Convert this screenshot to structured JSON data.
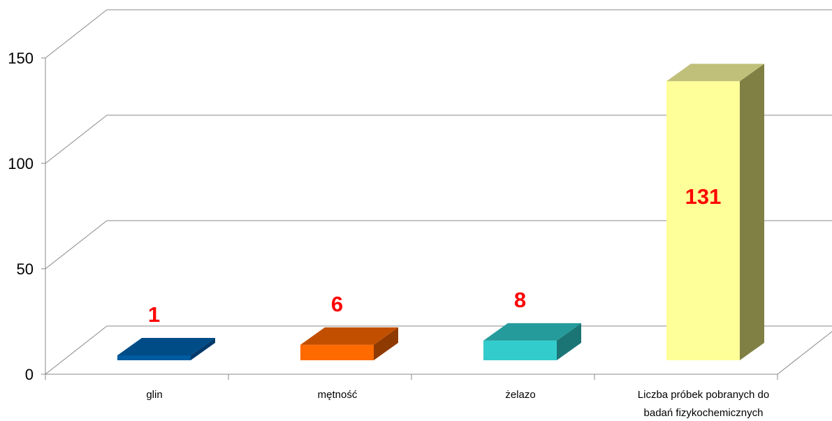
{
  "chart_data": {
    "type": "bar",
    "style": "3d-column",
    "categories": [
      [
        "glin"
      ],
      [
        "mętność"
      ],
      [
        "żelazo"
      ],
      [
        "Liczba próbek pobranych do",
        "badań fizykochemicznych"
      ]
    ],
    "values": [
      1,
      6,
      8,
      131
    ],
    "data_labels": [
      "1",
      "6",
      "8",
      "131"
    ],
    "y_ticks": [
      "0",
      "50",
      "100",
      "150"
    ],
    "y_tick_values": [
      0,
      50,
      100,
      150
    ],
    "ylim": [
      0,
      150
    ],
    "grid": true,
    "legend": "none",
    "colors": {
      "front": [
        "#005b9f",
        "#ff6a00",
        "#33cccc",
        "#ffff99"
      ],
      "top": [
        "#004c87",
        "#c24f00",
        "#259b9b",
        "#c0c07a"
      ],
      "side": [
        "#003a6b",
        "#8f3a00",
        "#1b7575",
        "#808045"
      ],
      "data_label": "#ff0000",
      "grid": "#888888"
    }
  }
}
